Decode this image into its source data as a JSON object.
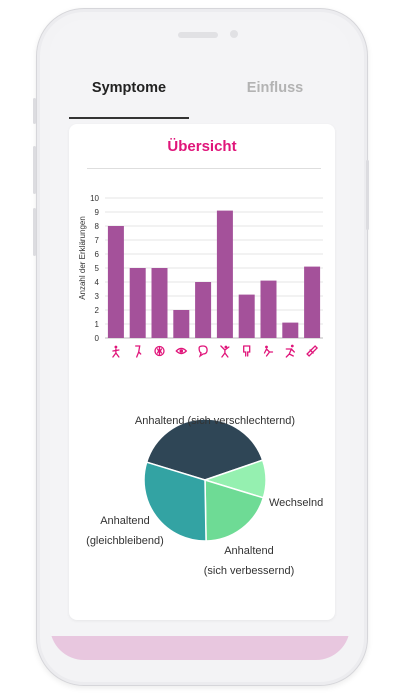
{
  "tabs": [
    {
      "label": "Symptome",
      "active": true
    },
    {
      "label": "Einfluss",
      "active": false
    }
  ],
  "card": {
    "title": "Übersicht"
  },
  "colors": {
    "accent": "#e0157a",
    "bar": "#a4519a",
    "bottom_bar": "#e8c7df",
    "pie_persistent_worsening": "#2f4656",
    "pie_alternating": "#95f0b0",
    "pie_persistent_improving": "#6edb95",
    "pie_persistent_stable": "#33a3a3"
  },
  "chart_data": [
    {
      "type": "bar",
      "ylabel": "Anzahl der Erklärungen",
      "ylim": [
        0,
        10
      ],
      "yticks": [
        0,
        1,
        2,
        3,
        4,
        5,
        6,
        7,
        8,
        9,
        10
      ],
      "grid": true,
      "categories": [
        "walking-person-icon",
        "leg-icon",
        "brain-icon",
        "eye-icon",
        "speech-bubble-icon",
        "stretching-person-icon",
        "bladder-icon",
        "tired-person-icon",
        "running-person-icon",
        "plaster-icon"
      ],
      "values": [
        8,
        5,
        5,
        2,
        4,
        9.1,
        3.1,
        4.1,
        1.1,
        5.1
      ]
    },
    {
      "type": "pie",
      "slices": [
        {
          "label": "Anhaltend (sich verschlechternd)",
          "value": 40
        },
        {
          "label": "Wechselnd",
          "value": 10
        },
        {
          "label": "Anhaltend (sich verbessernd)",
          "value": 20
        },
        {
          "label": "Anhaltend (gleichbleibend)",
          "value": 30
        }
      ]
    }
  ]
}
